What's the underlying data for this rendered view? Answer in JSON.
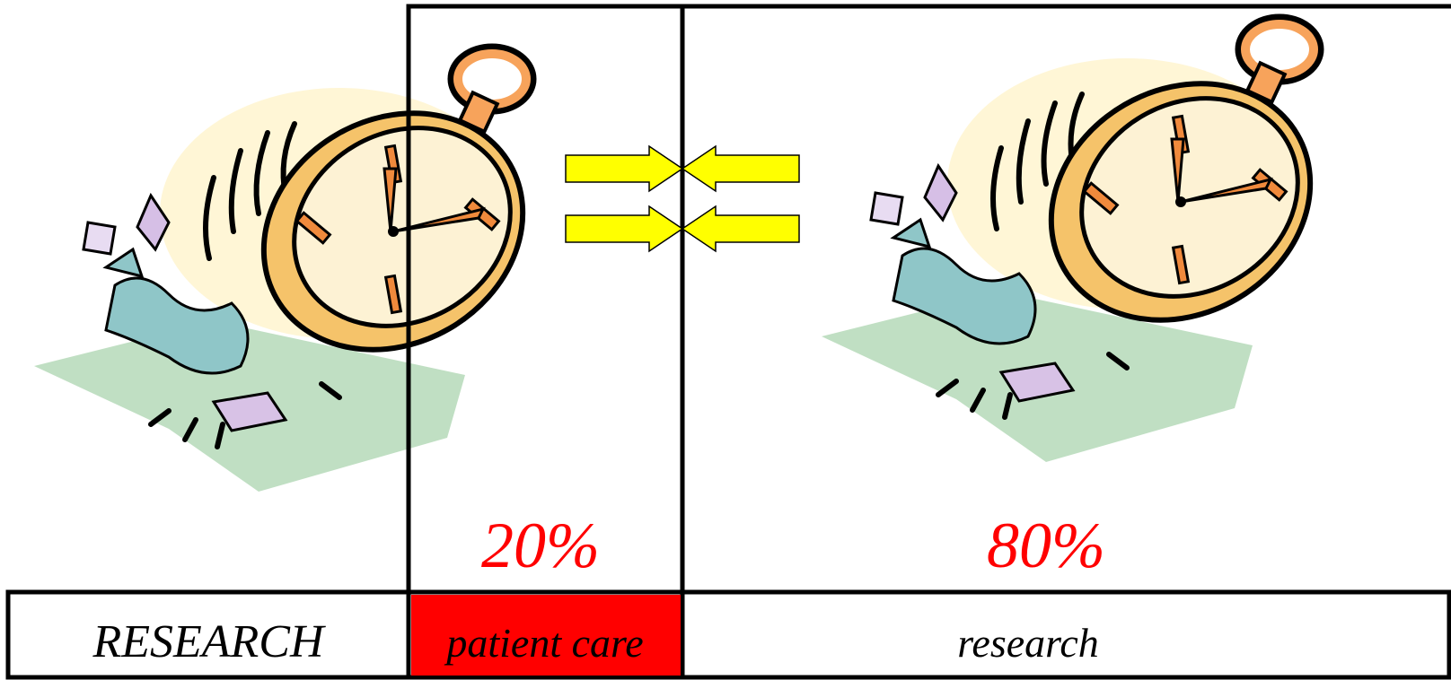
{
  "left_label": "RESEARCH",
  "segments": [
    {
      "percent": "20%",
      "label": "patient care"
    },
    {
      "percent": "80%",
      "label": "research"
    }
  ]
}
